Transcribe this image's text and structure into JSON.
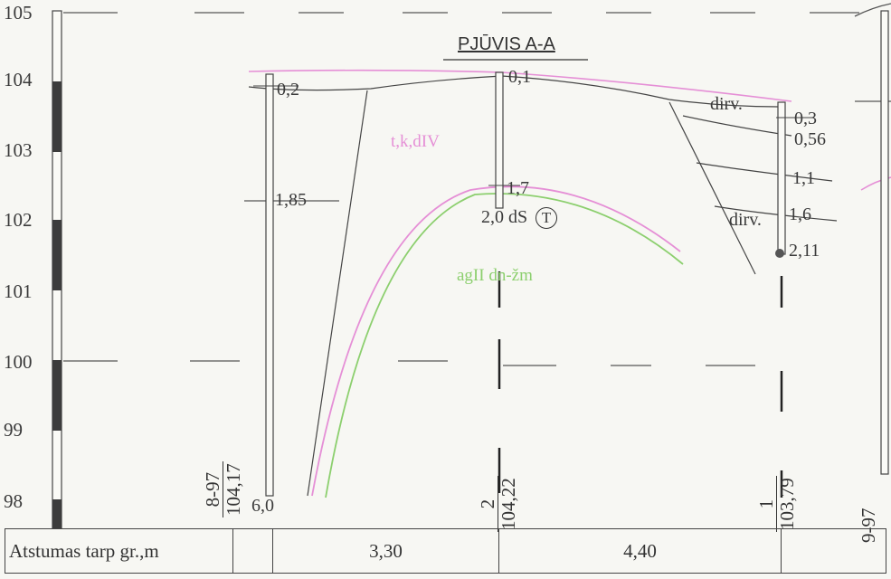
{
  "title": "PJŪVIS A-A",
  "y_axis": {
    "ticks": [
      "105",
      "104",
      "103",
      "102",
      "101",
      "100",
      "99",
      "98"
    ]
  },
  "soil_labels": {
    "tk_div": "t,k,dIV",
    "agII": "agII dn-žm",
    "dirv_top": "dirv.",
    "dirv_low": "dirv."
  },
  "boreholes": [
    {
      "id": "8-97",
      "elevation": "104,17",
      "bottom_depth": "6,0",
      "depths": [
        "0,2",
        "1,85"
      ]
    },
    {
      "id": "2",
      "elevation": "104,22",
      "depths": [
        "0,1",
        "1,7"
      ],
      "note": "2,0 dS",
      "note_symbol": "T"
    },
    {
      "id": "1",
      "elevation": "103,79",
      "depths": [
        "0,3",
        "0,56",
        "1,1",
        "1,6",
        "2,11"
      ]
    },
    {
      "id": "9-97"
    }
  ],
  "footer": {
    "label": "Atstumas tarp gr.,m",
    "distances": [
      "3,30",
      "4,40"
    ]
  }
}
